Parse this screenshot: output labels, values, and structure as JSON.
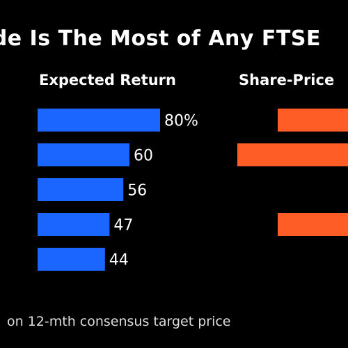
{
  "title": "ide Is The Most of Any FTSE",
  "footnote": "on 12-mth consensus target price",
  "colors": {
    "expected": "#1a66ff",
    "share_price": "#ff5c26",
    "background": "#000000",
    "text": "#ffffff"
  },
  "chart_data": [
    {
      "type": "bar",
      "orientation": "horizontal",
      "title": "Expected Return",
      "values": [
        80,
        60,
        56,
        47,
        44
      ],
      "labels": [
        "80%",
        "60",
        "56",
        "47",
        "44"
      ],
      "xlim": [
        0,
        80
      ]
    },
    {
      "type": "bar",
      "orientation": "horizontal",
      "title": "Share-Price",
      "values": [
        null,
        null,
        null,
        null,
        null
      ],
      "note": "partially cropped; bars visible for rows 1, 2 and 4 only"
    }
  ]
}
